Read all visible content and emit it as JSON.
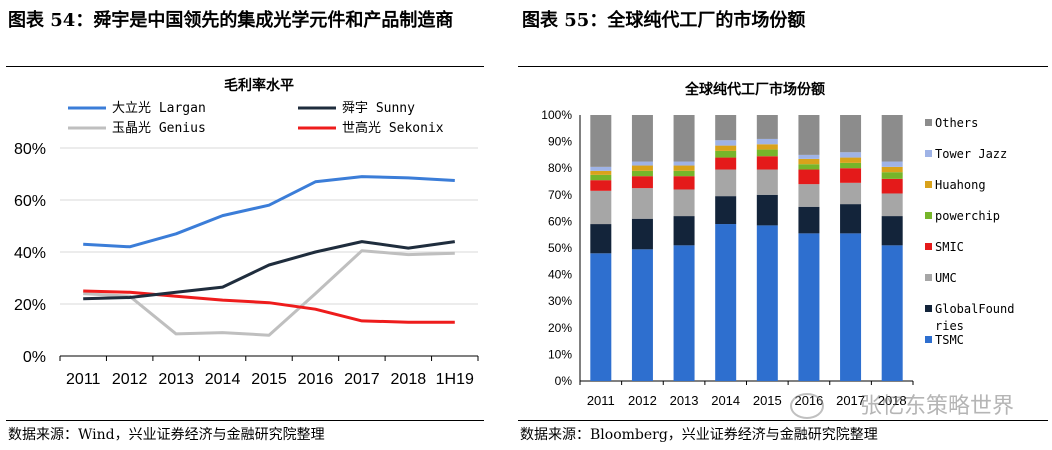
{
  "fig1": {
    "caption": "图表 54：舜宇是中国领先的集成光学元件和产品制造商",
    "source": "数据来源：Wind，兴业证券经济与金融研究院整理"
  },
  "fig2": {
    "caption": "图表 55：全球纯代工厂的市场份额",
    "source": "数据来源：Bloomberg，兴业证券经济与金融研究院整理"
  },
  "watermark": "张忆东策略世界",
  "chart_data": [
    {
      "type": "line",
      "title": "毛利率水平",
      "categories": [
        "2011",
        "2012",
        "2013",
        "2014",
        "2015",
        "2016",
        "2017",
        "2018",
        "1H19"
      ],
      "ylim": [
        0,
        80
      ],
      "yticks": [
        "0%",
        "20%",
        "40%",
        "60%",
        "80%"
      ],
      "grid": true,
      "legend_position": "top",
      "series": [
        {
          "name": "大立光 Largan",
          "color": "#3b7dd8",
          "values": [
            43,
            42,
            47,
            54,
            58,
            67,
            69,
            68.5,
            67.5
          ]
        },
        {
          "name": "舜宇 Sunny",
          "color": "#1f2d3d",
          "values": [
            22,
            22.5,
            24.5,
            26.5,
            35,
            40,
            44,
            41.5,
            44
          ]
        },
        {
          "name": "玉晶光 Genius",
          "color": "#bfbfbf",
          "values": [
            24,
            23,
            8.5,
            9,
            8,
            24,
            40.5,
            39,
            39.5
          ]
        },
        {
          "name": "世高光 Sekonix",
          "color": "#ee1c1c",
          "values": [
            25,
            24.5,
            23,
            21.5,
            20.5,
            18,
            13.5,
            13,
            13
          ]
        }
      ]
    },
    {
      "type": "bar",
      "stacked": true,
      "title": "全球纯代工厂市场份额",
      "categories": [
        "2011",
        "2012",
        "2013",
        "2014",
        "2015",
        "2016",
        "2017",
        "2018"
      ],
      "ylim": [
        0,
        100
      ],
      "yticks": [
        "0%",
        "10%",
        "20%",
        "30%",
        "40%",
        "50%",
        "60%",
        "70%",
        "80%",
        "90%",
        "100%"
      ],
      "legend_position": "right",
      "series": [
        {
          "name": "TSMC",
          "color": "#2e6fcf",
          "values": [
            48,
            49.5,
            51,
            59,
            58.5,
            55.5,
            55.5,
            51
          ]
        },
        {
          "name": "GlobalFoundries",
          "legend_label": "GlobalFound ries",
          "color": "#13243a",
          "values": [
            11,
            11.5,
            11,
            10.5,
            11.5,
            10,
            11,
            11
          ]
        },
        {
          "name": "UMC",
          "color": "#a6a6a6",
          "values": [
            12.5,
            11.5,
            10,
            10,
            9.5,
            8.5,
            8,
            8.5
          ]
        },
        {
          "name": "SMIC",
          "color": "#e41a1a",
          "values": [
            4,
            4.5,
            5,
            4.5,
            5,
            5.5,
            5.5,
            5.5
          ]
        },
        {
          "name": "powerchip",
          "color": "#76b52a",
          "values": [
            2,
            2,
            2,
            2.5,
            2.5,
            2,
            2,
            2.5
          ]
        },
        {
          "name": "Huahong",
          "color": "#d9a21b",
          "values": [
            1.5,
            2,
            2,
            2,
            2,
            2,
            2,
            2
          ]
        },
        {
          "name": "Tower Jazz",
          "color": "#9fb3e6",
          "values": [
            1.5,
            1.5,
            1.5,
            2,
            2,
            1.5,
            2,
            2
          ]
        },
        {
          "name": "Others",
          "color": "#8c8c8c",
          "values": [
            19.5,
            17.5,
            17.5,
            9.5,
            9,
            15,
            14,
            17.5
          ]
        }
      ]
    }
  ]
}
